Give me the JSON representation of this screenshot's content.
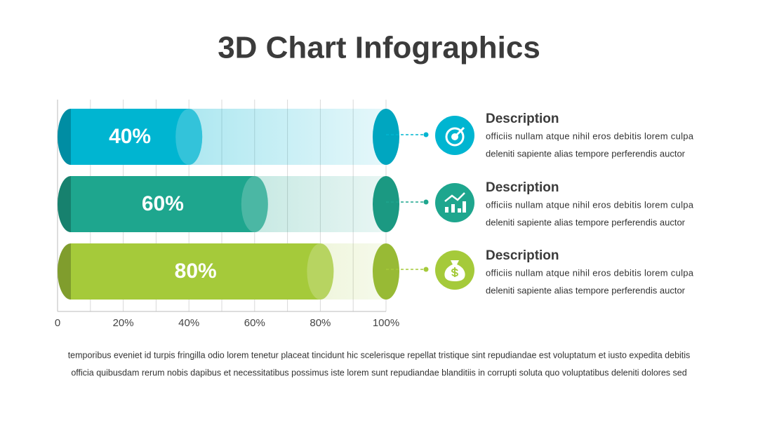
{
  "chart_data": {
    "type": "bar",
    "orientation": "horizontal",
    "title": "3D Chart Infographics",
    "categories": [
      null,
      null,
      null
    ],
    "values": [
      40,
      60,
      80
    ],
    "value_labels": [
      "40%",
      "60%",
      "80%"
    ],
    "colors": [
      "#00b5d1",
      "#1ea68e",
      "#a5ca3a"
    ],
    "xlim": [
      0,
      100
    ],
    "xticks": [
      0,
      {
        "value": 20,
        "label": "20%"
      },
      {
        "value": 40,
        "label": "40%"
      },
      {
        "value": 60,
        "label": "60%"
      },
      {
        "value": 80,
        "label": "80%"
      },
      {
        "value": 100,
        "label": "100%"
      }
    ],
    "xminorticks": [
      10,
      30,
      50,
      70,
      90
    ],
    "grid": true
  },
  "descriptions": [
    {
      "title": "Description",
      "lines": [
        "officiis nullam atque nihil eros debitis lorem culpa",
        "deleniti sapiente alias tempore perferendis auctor"
      ]
    },
    {
      "title": "Description",
      "lines": [
        "officiis nullam atque nihil eros debitis lorem culpa",
        "deleniti sapiente alias tempore perferendis auctor"
      ]
    },
    {
      "title": "Description",
      "lines": [
        "officiis nullam atque nihil eros debitis lorem culpa",
        "deleniti sapiente alias tempore perferendis auctor"
      ]
    }
  ],
  "footer": [
    "temporibus eveniet id turpis fringilla odio lorem tenetur placeat tincidunt hic scelerisque repellat tristique sint repudiandae est voluptatum et iusto expedita debitis",
    "officia quibusdam rerum nobis dapibus et necessitatibus possimus iste lorem sunt repudiandae blanditiis in corrupti soluta quo voluptatibus deleniti dolores sed"
  ]
}
